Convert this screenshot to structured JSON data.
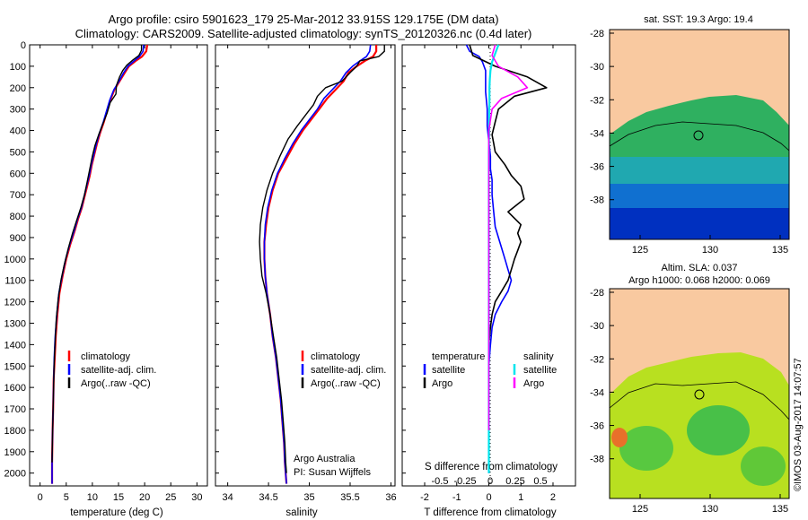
{
  "header": {
    "title_line1": "Argo profile: csiro 5901623_179 25-Mar-2012 33.915S 129.175E (DM data)",
    "title_line2": "Climatology: CARS2009. Satellite-adjusted climatology: synTS_20120326.nc (0.4d later)"
  },
  "colors": {
    "climatology": "#ff0000",
    "satellite": "#0000ff",
    "argo": "#000000",
    "salinity_satellite": "#00e5ee",
    "salinity_argo": "#ff00ff",
    "land": "#f9c9a0"
  },
  "depth_axis": {
    "ticks": [
      "0",
      "100",
      "200",
      "300",
      "400",
      "500",
      "600",
      "700",
      "800",
      "900",
      "1000",
      "1100",
      "1200",
      "1300",
      "1400",
      "1500",
      "1600",
      "1700",
      "1800",
      "1900",
      "2000"
    ],
    "range": [
      0,
      2060
    ]
  },
  "panels": {
    "temperature": {
      "xlabel": "temperature (deg C)",
      "xticks": [
        "0",
        "5",
        "10",
        "15",
        "20",
        "25",
        "30"
      ],
      "legend": [
        "climatology",
        "satellite-adj. clim.",
        "Argo(..raw -QC)"
      ]
    },
    "salinity": {
      "xlabel": "salinity",
      "xticks": [
        "34",
        "34.5",
        "35",
        "35.5",
        "36"
      ],
      "legend": [
        "climatology",
        "satellite-adj. clim.",
        "Argo(..raw -QC)"
      ],
      "note1": "Argo Australia",
      "note2": "PI: Susan Wijffels"
    },
    "difference": {
      "top_label": "S difference from climatology",
      "top_ticks": [
        "-0.5",
        "-0.25",
        "0",
        "0.25",
        "0.5"
      ],
      "xlabel": "T difference from climatology",
      "xticks": [
        "-2",
        "-1",
        "0",
        "1",
        "2"
      ],
      "legend_temp_title": "temperature",
      "legend_sal_title": "salinity",
      "legend_temp": [
        "satellite",
        "Argo"
      ],
      "legend_sal": [
        "satellite",
        "Argo"
      ]
    }
  },
  "maps": {
    "sst": {
      "title": "sat. SST: 19.3  Argo: 19.4",
      "yticks": [
        "-28",
        "-30",
        "-32",
        "-34",
        "-36",
        "-38"
      ],
      "xticks": [
        "125",
        "130",
        "135"
      ]
    },
    "sla": {
      "title1": "Altim. SLA: 0.037",
      "title2": "Argo h1000: 0.068 h2000: 0.069",
      "yticks": [
        "-28",
        "-30",
        "-32",
        "-34",
        "-36",
        "-38"
      ],
      "xticks": [
        "125",
        "130",
        "135"
      ],
      "watermark": "©IMOS 03-Aug-2017 14:07:57"
    }
  },
  "chart_data": [
    {
      "type": "line",
      "title": "",
      "xlabel": "temperature (deg C)",
      "ylabel": "",
      "xlim": [
        -2,
        32
      ],
      "ylim": [
        2060,
        0
      ],
      "series": [
        {
          "name": "climatology",
          "x": [
            20.5,
            20.3,
            19.5,
            18.3,
            17.0,
            16.2,
            15.2,
            14.2,
            13.4,
            12.8,
            12.2,
            11.5,
            10.9,
            10.4,
            9.9,
            9.5,
            9.0,
            8.5,
            8.0,
            7.3,
            6.6,
            5.8,
            5.0,
            4.3,
            3.7,
            3.3,
            3.0,
            2.8,
            2.6,
            2.5,
            2.4,
            2.3,
            2.3
          ],
          "y": [
            0,
            30,
            55,
            75,
            100,
            130,
            170,
            210,
            260,
            310,
            360,
            410,
            460,
            510,
            560,
            610,
            660,
            710,
            760,
            810,
            870,
            930,
            1000,
            1080,
            1160,
            1260,
            1360,
            1460,
            1560,
            1700,
            1800,
            1950,
            2050
          ]
        },
        {
          "name": "satellite-adj. clim.",
          "x": [
            19.8,
            19.7,
            19.0,
            18.0,
            16.8,
            16.0,
            15.1,
            14.1,
            13.3,
            12.7,
            12.1,
            11.4,
            10.8,
            10.3,
            9.8,
            9.4,
            8.9,
            8.4,
            7.9,
            7.2,
            6.5,
            5.7,
            4.9,
            4.2,
            3.6,
            3.2,
            2.9,
            2.7,
            2.6,
            2.5,
            2.4,
            2.3,
            2.3
          ],
          "y": [
            0,
            30,
            55,
            75,
            100,
            130,
            170,
            210,
            260,
            310,
            360,
            410,
            460,
            510,
            560,
            610,
            660,
            710,
            760,
            810,
            870,
            930,
            1000,
            1080,
            1160,
            1260,
            1360,
            1460,
            1560,
            1700,
            1800,
            1950,
            2050
          ]
        },
        {
          "name": "Argo(..raw -QC)",
          "x": [
            19.4,
            19.4,
            18.9,
            17.8,
            16.6,
            15.8,
            15.2,
            14.6,
            14.5,
            13.4,
            12.8,
            12.0,
            11.2,
            10.5,
            10.0,
            9.5,
            9.0,
            8.5,
            7.8,
            7.0,
            6.2,
            5.4,
            4.6,
            4.0,
            3.5,
            3.1,
            2.9,
            2.7,
            2.6,
            2.5,
            2.4,
            2.3
          ],
          "y": [
            0,
            25,
            50,
            70,
            95,
            120,
            150,
            190,
            230,
            270,
            320,
            370,
            420,
            470,
            520,
            580,
            640,
            700,
            760,
            820,
            880,
            950,
            1030,
            1100,
            1180,
            1280,
            1380,
            1480,
            1580,
            1700,
            1800,
            1950
          ]
        }
      ]
    },
    {
      "type": "line",
      "title": "",
      "xlabel": "salinity",
      "ylabel": "",
      "xlim": [
        33.85,
        36.05
      ],
      "ylim": [
        2060,
        0
      ],
      "series": [
        {
          "name": "climatology",
          "x": [
            35.82,
            35.82,
            35.78,
            35.68,
            35.58,
            35.48,
            35.42,
            35.32,
            35.22,
            35.12,
            35.02,
            34.92,
            34.82,
            34.72,
            34.62,
            34.55,
            34.5,
            34.47,
            34.45,
            34.45,
            34.46,
            34.48,
            34.52,
            34.55,
            34.59,
            34.62,
            34.65,
            34.67,
            34.69,
            34.7,
            34.71,
            34.72
          ],
          "y": [
            0,
            30,
            55,
            75,
            100,
            130,
            170,
            210,
            250,
            300,
            350,
            400,
            460,
            530,
            600,
            680,
            760,
            840,
            920,
            1000,
            1080,
            1160,
            1260,
            1360,
            1460,
            1560,
            1660,
            1760,
            1860,
            1950,
            2000,
            2050
          ]
        },
        {
          "name": "satellite-adj. clim.",
          "x": [
            35.75,
            35.74,
            35.7,
            35.62,
            35.53,
            35.45,
            35.38,
            35.28,
            35.18,
            35.1,
            35.0,
            34.9,
            34.8,
            34.7,
            34.61,
            34.54,
            34.49,
            34.46,
            34.45,
            34.45,
            34.46,
            34.48,
            34.52,
            34.55,
            34.59,
            34.62,
            34.65,
            34.67,
            34.69,
            34.7,
            34.71,
            34.72
          ],
          "y": [
            0,
            30,
            55,
            75,
            100,
            130,
            170,
            210,
            250,
            300,
            350,
            400,
            460,
            530,
            600,
            680,
            760,
            840,
            920,
            1000,
            1080,
            1160,
            1260,
            1360,
            1460,
            1560,
            1660,
            1760,
            1860,
            1950,
            2000,
            2050
          ]
        },
        {
          "name": "Argo(..raw -QC)",
          "x": [
            35.92,
            35.92,
            35.85,
            35.62,
            35.58,
            35.5,
            35.4,
            35.2,
            35.1,
            35.05,
            34.95,
            34.85,
            34.74,
            34.64,
            34.55,
            34.48,
            34.43,
            34.4,
            34.39,
            34.4,
            34.42,
            34.47,
            34.52,
            34.56,
            34.6,
            34.63,
            34.66,
            34.68,
            34.7,
            34.71,
            34.72
          ],
          "y": [
            0,
            30,
            55,
            75,
            100,
            130,
            170,
            200,
            240,
            280,
            330,
            380,
            440,
            520,
            600,
            680,
            760,
            840,
            920,
            1000,
            1080,
            1160,
            1260,
            1360,
            1460,
            1560,
            1660,
            1760,
            1860,
            1950,
            2000
          ]
        }
      ]
    },
    {
      "type": "line",
      "title": "",
      "xlabel": "T difference from climatology",
      "ylabel": "",
      "xlim": [
        -2.7,
        2.7
      ],
      "ylim": [
        2060,
        0
      ],
      "series": [
        {
          "name": "temperature satellite",
          "x": [
            -0.7,
            -0.6,
            -0.3,
            -0.2,
            -0.1,
            -0.1,
            -0.1,
            -0.05,
            -0.05,
            0.0,
            0.05,
            0.05,
            0.1,
            0.1,
            0.15,
            0.2,
            0.3,
            0.4,
            0.5,
            0.6,
            0.7,
            0.6,
            0.4,
            0.2,
            0.1,
            0.05,
            0.0,
            0.0,
            0.0,
            0.0
          ],
          "y": [
            0,
            30,
            55,
            80,
            120,
            170,
            220,
            300,
            380,
            450,
            520,
            580,
            630,
            700,
            780,
            850,
            900,
            950,
            1000,
            1050,
            1100,
            1150,
            1200,
            1260,
            1320,
            1400,
            1500,
            1600,
            1800,
            2000
          ]
        },
        {
          "name": "temperature Argo",
          "x": [
            -0.6,
            -0.5,
            0.2,
            1.2,
            1.8,
            0.8,
            0.3,
            0.2,
            0.1,
            0.15,
            0.2,
            0.5,
            0.7,
            1.0,
            1.1,
            0.6,
            1.0,
            0.9,
            1.0,
            0.9,
            0.8,
            0.7,
            0.6,
            0.4,
            0.2,
            0.1,
            0.05,
            0.0,
            0.0,
            0.0
          ],
          "y": [
            0,
            50,
            100,
            150,
            200,
            240,
            300,
            360,
            420,
            460,
            500,
            560,
            610,
            660,
            720,
            780,
            840,
            880,
            920,
            960,
            1000,
            1050,
            1100,
            1150,
            1200,
            1260,
            1320,
            1400,
            1500,
            1700
          ]
        },
        {
          "name": "salinity satellite",
          "x": [
            0.3,
            0.2,
            0.1,
            0.05,
            0.03,
            0.02,
            0.02,
            0.01,
            0.01,
            0.0,
            0.0,
            0.0,
            0.0,
            0.0,
            0.0,
            0.0,
            0.0
          ],
          "y": [
            0,
            40,
            80,
            120,
            160,
            200,
            260,
            320,
            400,
            500,
            700,
            900,
            1100,
            1300,
            1500,
            1800,
            2000
          ]
        },
        {
          "name": "salinity Argo",
          "x": [
            0.2,
            0.1,
            0.3,
            0.9,
            1.2,
            0.4,
            0.1,
            0.0,
            0.0,
            0.0,
            0.0,
            0.0,
            0.0,
            0.0,
            0.0
          ],
          "y": [
            0,
            50,
            100,
            150,
            200,
            250,
            300,
            400,
            500,
            700,
            900,
            1100,
            1300,
            1500,
            1800
          ]
        }
      ]
    }
  ]
}
